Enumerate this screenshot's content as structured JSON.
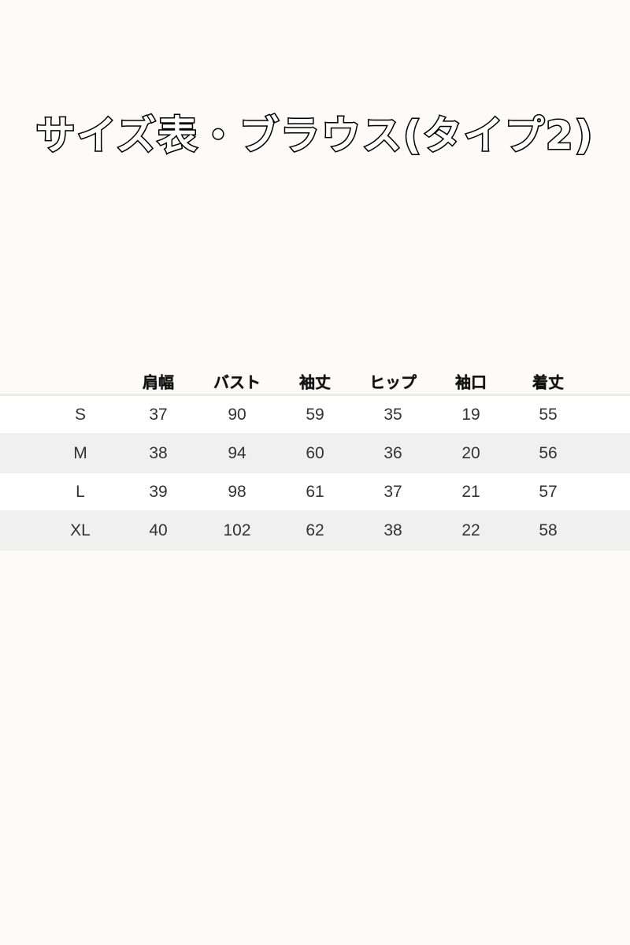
{
  "title": "サイズ表・ブラウス(タイプ2)",
  "table": {
    "headers": [
      "",
      "肩幅",
      "バスト",
      "袖丈",
      "ヒップ",
      "袖口",
      "着丈"
    ],
    "rows": [
      [
        "S",
        "37",
        "90",
        "59",
        "35",
        "19",
        "55"
      ],
      [
        "M",
        "38",
        "94",
        "60",
        "36",
        "20",
        "56"
      ],
      [
        "L",
        "39",
        "98",
        "61",
        "37",
        "21",
        "57"
      ],
      [
        "XL",
        "40",
        "102",
        "62",
        "38",
        "22",
        "58"
      ]
    ]
  },
  "colors": {
    "background": "#fdfbf7",
    "stripe": "#f0f0f0"
  }
}
